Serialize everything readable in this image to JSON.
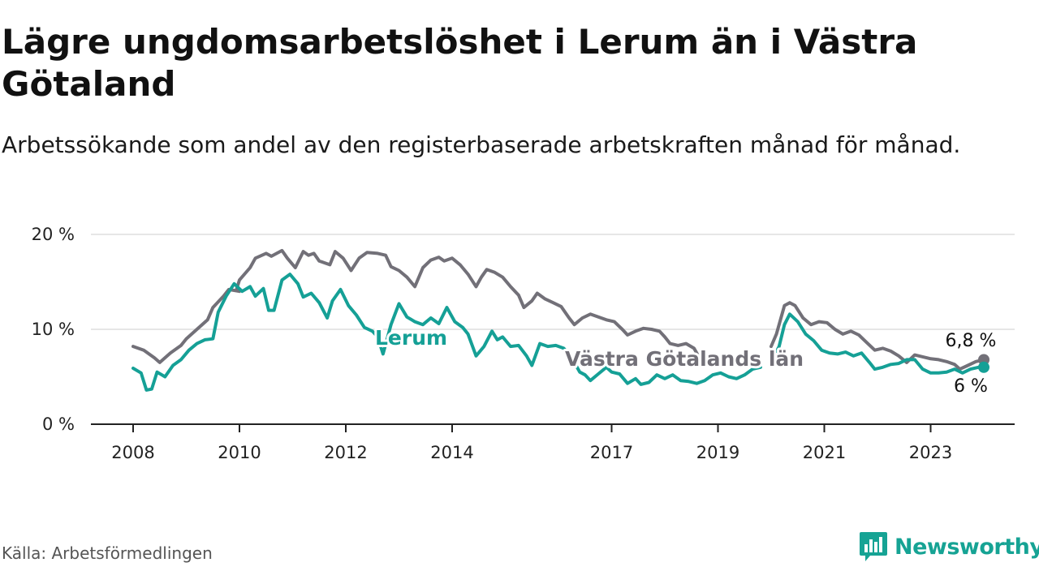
{
  "title": "Lägre ungdomsarbetslöshet i Lerum än i Västra Götaland",
  "subtitle": "Arbetssökande som andel av den registerbaserade arbetskraften månad för månad.",
  "source": "Källa: Arbetsförmedlingen",
  "brand": "Newsworthy",
  "colors": {
    "lerum": "#15a096",
    "region": "#727078",
    "grid": "#dddddd",
    "axis": "#222222",
    "brand": "#16a394"
  },
  "chart_data": {
    "type": "line",
    "title": "Lägre ungdomsarbetslöshet i Lerum än i Västra Götaland",
    "xlabel": "",
    "ylabel": "",
    "x_range": [
      2008,
      2024
    ],
    "ylim": [
      0,
      20
    ],
    "y_ticks": [
      0,
      10,
      20
    ],
    "y_tick_labels": [
      "0 %",
      "10 %",
      "20 %"
    ],
    "x_ticks": [
      2008,
      2010,
      2012,
      2014,
      2017,
      2019,
      2021,
      2023
    ],
    "x_tick_labels": [
      "2008",
      "2010",
      "2012",
      "2014",
      "2017",
      "2019",
      "2021",
      "2023"
    ],
    "series": [
      {
        "name": "Västra Götalands län",
        "label": "Västra Götalands län",
        "end_label": "6,8 %",
        "points": [
          [
            2008.0,
            8.2
          ],
          [
            2008.2,
            7.8
          ],
          [
            2008.4,
            7.0
          ],
          [
            2008.5,
            6.5
          ],
          [
            2008.7,
            7.5
          ],
          [
            2008.9,
            8.3
          ],
          [
            2009.0,
            9.0
          ],
          [
            2009.2,
            10.0
          ],
          [
            2009.4,
            11.0
          ],
          [
            2009.5,
            12.3
          ],
          [
            2009.7,
            13.5
          ],
          [
            2009.8,
            14.2
          ],
          [
            2010.0,
            14.0
          ],
          [
            2009.95,
            14.3
          ],
          [
            2010.0,
            15.2
          ],
          [
            2010.2,
            16.5
          ],
          [
            2010.3,
            17.5
          ],
          [
            2010.5,
            18.0
          ],
          [
            2010.6,
            17.7
          ],
          [
            2010.8,
            18.3
          ],
          [
            2010.9,
            17.5
          ],
          [
            2011.05,
            16.5
          ],
          [
            2011.2,
            18.2
          ],
          [
            2011.3,
            17.8
          ],
          [
            2011.4,
            18.0
          ],
          [
            2011.5,
            17.2
          ],
          [
            2011.7,
            16.8
          ],
          [
            2011.8,
            18.2
          ],
          [
            2011.95,
            17.5
          ],
          [
            2012.1,
            16.2
          ],
          [
            2012.25,
            17.5
          ],
          [
            2012.4,
            18.1
          ],
          [
            2012.6,
            18.0
          ],
          [
            2012.75,
            17.8
          ],
          [
            2012.85,
            16.6
          ],
          [
            2013.0,
            16.2
          ],
          [
            2013.15,
            15.5
          ],
          [
            2013.3,
            14.5
          ],
          [
            2013.45,
            16.5
          ],
          [
            2013.6,
            17.3
          ],
          [
            2013.75,
            17.6
          ],
          [
            2013.85,
            17.2
          ],
          [
            2014.0,
            17.5
          ],
          [
            2014.15,
            16.8
          ],
          [
            2014.3,
            15.8
          ],
          [
            2014.45,
            14.5
          ],
          [
            2014.55,
            15.5
          ],
          [
            2014.65,
            16.3
          ],
          [
            2014.8,
            16.0
          ],
          [
            2014.95,
            15.5
          ],
          [
            2015.1,
            14.5
          ],
          [
            2015.25,
            13.6
          ],
          [
            2015.35,
            12.3
          ],
          [
            2015.5,
            13.0
          ],
          [
            2015.6,
            13.8
          ],
          [
            2015.75,
            13.2
          ],
          [
            2015.9,
            12.8
          ],
          [
            2016.05,
            12.4
          ],
          [
            2016.2,
            11.2
          ],
          [
            2016.3,
            10.5
          ],
          [
            2016.45,
            11.2
          ],
          [
            2016.6,
            11.6
          ],
          [
            2016.75,
            11.3
          ],
          [
            2016.9,
            11.0
          ],
          [
            2017.05,
            10.8
          ],
          [
            2017.2,
            10.0
          ],
          [
            2017.3,
            9.4
          ],
          [
            2017.45,
            9.8
          ],
          [
            2017.6,
            10.1
          ],
          [
            2017.75,
            10.0
          ],
          [
            2017.9,
            9.8
          ],
          [
            2018.0,
            9.2
          ],
          [
            2018.1,
            8.5
          ],
          [
            2018.25,
            8.3
          ],
          [
            2018.4,
            8.5
          ],
          [
            2018.55,
            8.0
          ],
          [
            2018.65,
            7.0
          ]
        ],
        "points2": [
          [
            2020.0,
            8.2
          ],
          [
            2020.1,
            9.5
          ],
          [
            2020.25,
            12.5
          ],
          [
            2020.35,
            12.8
          ],
          [
            2020.45,
            12.5
          ],
          [
            2020.6,
            11.2
          ],
          [
            2020.75,
            10.5
          ],
          [
            2020.9,
            10.8
          ],
          [
            2021.05,
            10.7
          ],
          [
            2021.2,
            10.0
          ],
          [
            2021.35,
            9.5
          ],
          [
            2021.5,
            9.8
          ],
          [
            2021.65,
            9.4
          ],
          [
            2021.8,
            8.6
          ],
          [
            2021.95,
            7.8
          ],
          [
            2022.1,
            8.0
          ],
          [
            2022.25,
            7.7
          ],
          [
            2022.4,
            7.2
          ],
          [
            2022.55,
            6.5
          ],
          [
            2022.7,
            7.3
          ],
          [
            2022.85,
            7.1
          ],
          [
            2023.0,
            6.9
          ],
          [
            2023.15,
            6.8
          ],
          [
            2023.3,
            6.6
          ],
          [
            2023.45,
            6.3
          ],
          [
            2023.55,
            5.8
          ],
          [
            2023.7,
            6.2
          ],
          [
            2023.85,
            6.6
          ],
          [
            2024.0,
            6.8
          ]
        ]
      },
      {
        "name": "Lerum",
        "label": "Lerum",
        "end_label": "6 %",
        "points": [
          [
            2008.0,
            5.9
          ],
          [
            2008.15,
            5.4
          ],
          [
            2008.25,
            3.6
          ],
          [
            2008.35,
            3.7
          ],
          [
            2008.45,
            5.5
          ],
          [
            2008.6,
            5.0
          ],
          [
            2008.75,
            6.2
          ],
          [
            2008.9,
            6.8
          ],
          [
            2009.05,
            7.8
          ],
          [
            2009.2,
            8.5
          ],
          [
            2009.35,
            8.9
          ],
          [
            2009.5,
            9.0
          ],
          [
            2009.6,
            11.8
          ],
          [
            2009.75,
            13.5
          ],
          [
            2009.9,
            14.8
          ],
          [
            2010.05,
            14.0
          ],
          [
            2010.2,
            14.5
          ],
          [
            2010.3,
            13.5
          ],
          [
            2010.45,
            14.3
          ],
          [
            2010.55,
            12.0
          ],
          [
            2010.65,
            12.0
          ],
          [
            2010.8,
            15.2
          ],
          [
            2010.95,
            15.8
          ],
          [
            2011.1,
            14.8
          ],
          [
            2011.2,
            13.4
          ],
          [
            2011.35,
            13.8
          ],
          [
            2011.5,
            12.8
          ],
          [
            2011.65,
            11.2
          ],
          [
            2011.75,
            13.0
          ],
          [
            2011.9,
            14.2
          ],
          [
            2012.05,
            12.5
          ],
          [
            2012.2,
            11.5
          ],
          [
            2012.35,
            10.2
          ],
          [
            2012.5,
            9.8
          ],
          [
            2012.6,
            9.2
          ],
          [
            2012.7,
            7.4
          ],
          [
            2012.85,
            10.5
          ],
          [
            2013.0,
            12.7
          ],
          [
            2013.15,
            11.3
          ],
          [
            2013.3,
            10.8
          ],
          [
            2013.45,
            10.5
          ],
          [
            2013.6,
            11.2
          ],
          [
            2013.75,
            10.6
          ],
          [
            2013.9,
            12.3
          ],
          [
            2014.05,
            10.8
          ],
          [
            2014.2,
            10.2
          ],
          [
            2014.3,
            9.5
          ],
          [
            2014.45,
            7.2
          ],
          [
            2014.6,
            8.2
          ],
          [
            2014.75,
            9.8
          ],
          [
            2014.85,
            8.9
          ],
          [
            2014.95,
            9.2
          ],
          [
            2015.1,
            8.2
          ],
          [
            2015.25,
            8.3
          ],
          [
            2015.4,
            7.2
          ],
          [
            2015.5,
            6.2
          ],
          [
            2015.65,
            8.5
          ],
          [
            2015.8,
            8.2
          ],
          [
            2015.95,
            8.3
          ],
          [
            2016.1,
            8.0
          ],
          [
            2016.25,
            7.0
          ],
          [
            2016.4,
            5.5
          ],
          [
            2016.5,
            5.2
          ],
          [
            2016.6,
            4.6
          ],
          [
            2016.75,
            5.3
          ],
          [
            2016.9,
            6.0
          ],
          [
            2017.0,
            5.5
          ],
          [
            2017.15,
            5.3
          ],
          [
            2017.3,
            4.3
          ],
          [
            2017.45,
            4.8
          ],
          [
            2017.55,
            4.2
          ],
          [
            2017.7,
            4.4
          ],
          [
            2017.85,
            5.2
          ],
          [
            2018.0,
            4.8
          ],
          [
            2018.15,
            5.2
          ],
          [
            2018.3,
            4.6
          ],
          [
            2018.45,
            4.5
          ],
          [
            2018.6,
            4.3
          ],
          [
            2018.75,
            4.6
          ],
          [
            2018.9,
            5.2
          ],
          [
            2019.05,
            5.4
          ],
          [
            2019.2,
            5.0
          ],
          [
            2019.35,
            4.8
          ],
          [
            2019.5,
            5.2
          ],
          [
            2019.65,
            5.8
          ],
          [
            2019.8,
            6.0
          ]
        ],
        "points2": [
          [
            2020.0,
            6.5
          ],
          [
            2020.15,
            8.2
          ],
          [
            2020.25,
            10.5
          ],
          [
            2020.35,
            11.6
          ],
          [
            2020.5,
            10.8
          ],
          [
            2020.65,
            9.5
          ],
          [
            2020.8,
            8.8
          ],
          [
            2020.95,
            7.8
          ],
          [
            2021.1,
            7.5
          ],
          [
            2021.25,
            7.4
          ],
          [
            2021.4,
            7.6
          ],
          [
            2021.55,
            7.2
          ],
          [
            2021.7,
            7.5
          ],
          [
            2021.85,
            6.5
          ],
          [
            2021.95,
            5.8
          ],
          [
            2022.1,
            6.0
          ],
          [
            2022.25,
            6.3
          ],
          [
            2022.4,
            6.4
          ],
          [
            2022.55,
            6.8
          ],
          [
            2022.7,
            6.8
          ],
          [
            2022.85,
            5.8
          ],
          [
            2023.0,
            5.4
          ],
          [
            2023.15,
            5.4
          ],
          [
            2023.3,
            5.5
          ],
          [
            2023.45,
            5.8
          ],
          [
            2023.6,
            5.4
          ],
          [
            2023.75,
            5.8
          ],
          [
            2023.9,
            6.0
          ],
          [
            2024.0,
            6.0
          ]
        ]
      }
    ]
  }
}
